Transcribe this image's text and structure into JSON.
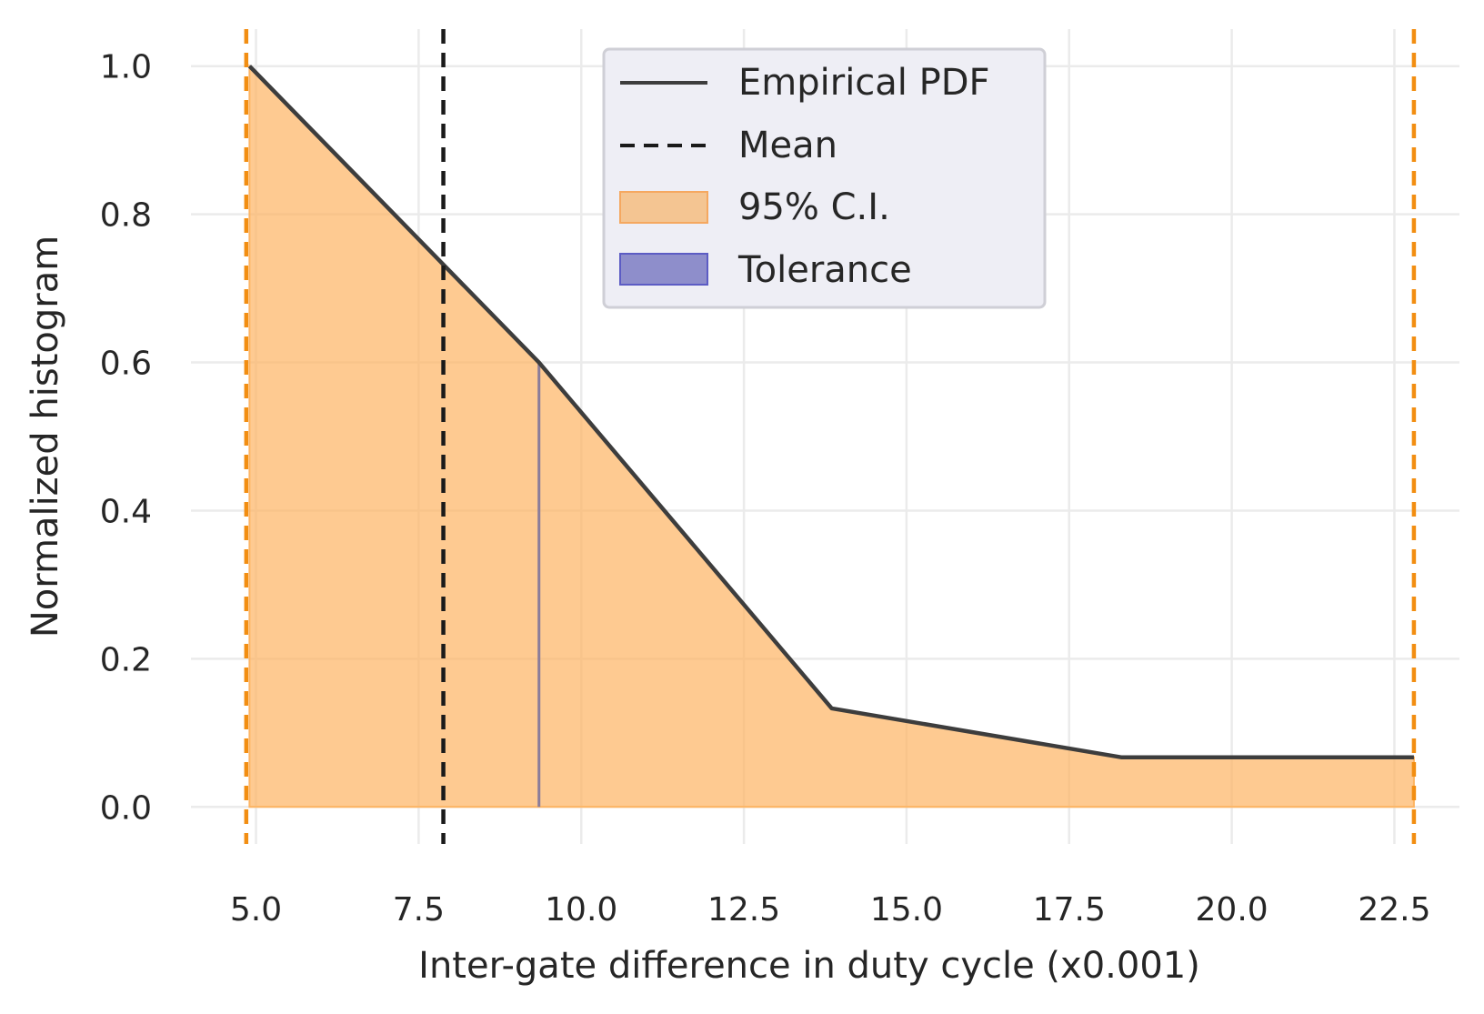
{
  "chart_data": {
    "type": "line",
    "title": "",
    "xlabel": "Inter-gate difference in duty cycle  (x0.001)",
    "ylabel": "Normalized histogram",
    "xlim": [
      4.0,
      23.5
    ],
    "ylim": [
      -0.05,
      1.05
    ],
    "xticks": [
      5.0,
      7.5,
      10.0,
      12.5,
      15.0,
      17.5,
      20.0,
      22.5
    ],
    "xtick_labels": [
      "5.0",
      "7.5",
      "10.0",
      "12.5",
      "15.0",
      "17.5",
      "20.0",
      "22.5"
    ],
    "yticks": [
      0.0,
      0.2,
      0.4,
      0.6,
      0.8,
      1.0
    ],
    "ytick_labels": [
      "0.0",
      "0.2",
      "0.4",
      "0.6",
      "0.8",
      "1.0"
    ],
    "grid": true,
    "legend_position": "top-center",
    "series": [
      {
        "name": "Empirical PDF",
        "x": [
          4.9,
          9.35,
          13.85,
          18.3,
          22.8
        ],
        "y": [
          1.0,
          0.6,
          0.133,
          0.067,
          0.067
        ],
        "color": "#3d3d3d"
      }
    ],
    "mean": {
      "name": "Mean",
      "x": 7.88,
      "color": "#1a1a1a"
    },
    "ci": {
      "name": "95% C.I.",
      "x_low": 4.85,
      "x_high": 22.8,
      "color": "#fdb462",
      "edge_color": "#f28e12"
    },
    "tolerance": {
      "name": "Tolerance",
      "x": 9.35,
      "color": "#3f3fb0"
    },
    "legend": [
      {
        "label": "Empirical PDF",
        "kind": "line"
      },
      {
        "label": "Mean",
        "kind": "dash"
      },
      {
        "label": "95% C.I.",
        "kind": "patch-orange"
      },
      {
        "label": "Tolerance",
        "kind": "patch-blue"
      }
    ]
  }
}
